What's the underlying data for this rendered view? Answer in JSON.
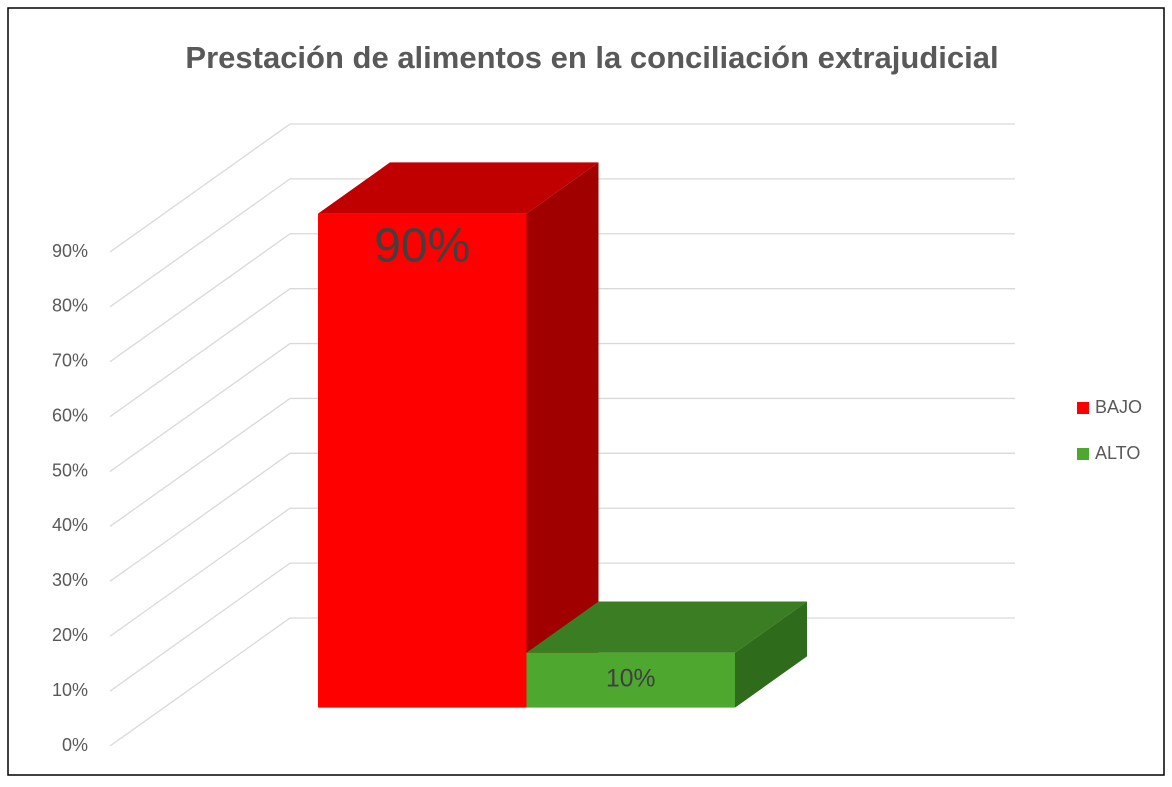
{
  "chart_data": {
    "type": "bar3d",
    "title": "Prestación de alimentos en la conciliación extrajudicial",
    "categories": [
      null
    ],
    "series": [
      {
        "name": "BAJO",
        "color": "#ff0000",
        "top_color": "#c00000",
        "side_color": "#a00000",
        "values": [
          90
        ],
        "value_labels": [
          "90%"
        ]
      },
      {
        "name": "ALTO",
        "color": "#4ea72e",
        "top_color": "#3a7d22",
        "side_color": "#2e6b1a",
        "values": [
          10
        ],
        "value_labels": [
          "10%"
        ]
      }
    ],
    "ylim": [
      0,
      90
    ],
    "yticks": [
      {
        "value": 0,
        "label": "0%"
      },
      {
        "value": 10,
        "label": "10%"
      },
      {
        "value": 20,
        "label": "20%"
      },
      {
        "value": 30,
        "label": "30%"
      },
      {
        "value": 40,
        "label": "40%"
      },
      {
        "value": 50,
        "label": "50%"
      },
      {
        "value": 60,
        "label": "60%"
      },
      {
        "value": 70,
        "label": "70%"
      },
      {
        "value": 80,
        "label": "80%"
      },
      {
        "value": 90,
        "label": "90%"
      }
    ],
    "grid": true,
    "legend": "right"
  }
}
